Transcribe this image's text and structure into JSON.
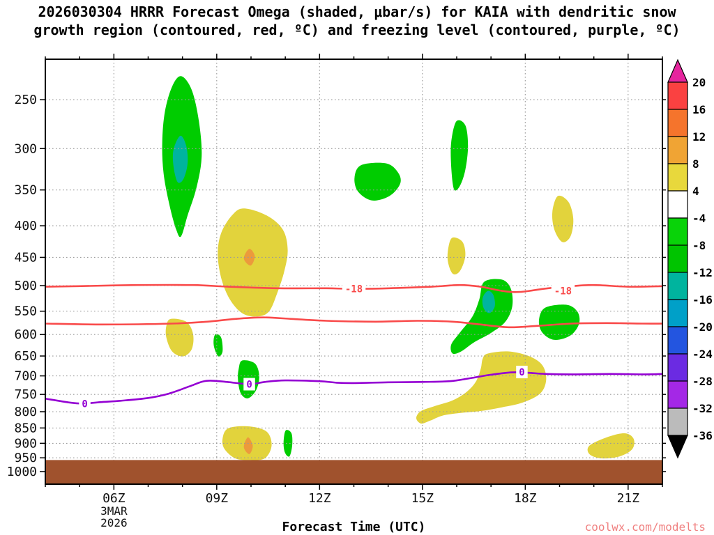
{
  "chart_data": {
    "type": "heatmap",
    "subtype": "pressure-time forecast cross-section (filled contours)",
    "title_line1": "2026030304 HRRR Forecast Omega (shaded, μbar/s) for KAIA with dendritic snow",
    "title_line2": "growth region (contoured, red, ºC) and freezing level (contoured, purple, ºC)",
    "watermark": "coolwx.com/modelts",
    "x_axis": {
      "label": "Forecast Time (UTC)",
      "range_hours": [
        4,
        22
      ],
      "major_ticks": [
        {
          "hour": 6,
          "label": "06Z"
        },
        {
          "hour": 9,
          "label": "09Z"
        },
        {
          "hour": 12,
          "label": "12Z"
        },
        {
          "hour": 15,
          "label": "15Z"
        },
        {
          "hour": 18,
          "label": "18Z"
        },
        {
          "hour": 21,
          "label": "21Z"
        }
      ],
      "minor_tick_every_hours": 1,
      "date_lines": [
        "3MAR",
        "2026"
      ],
      "date_tick_hour": 6
    },
    "y_axis": {
      "scale": "log",
      "range_hpa": [
        215,
        1048
      ],
      "ticks": [
        250,
        300,
        350,
        400,
        450,
        500,
        550,
        600,
        650,
        700,
        750,
        800,
        850,
        900,
        950,
        1000
      ]
    },
    "grid": {
      "color": "#999999",
      "style": "dotted"
    },
    "colorbar": {
      "labels": [
        20,
        16,
        12,
        8,
        4,
        -4,
        -8,
        -12,
        -16,
        -20,
        -24,
        -28,
        -32,
        -36
      ],
      "band_colors": [
        "#FA4141",
        "#F5742C",
        "#F0A434",
        "#E8D83C",
        "#FFFFFF",
        "#09D309",
        "#00C400",
        "#00B49E",
        "#00A0C8",
        "#2355E0",
        "#6B2BE2",
        "#A428E6",
        "#BBBBBB"
      ],
      "above_color": "#E6259E",
      "below_color": "#000000"
    },
    "terrain": {
      "color": "#A0522D",
      "top_pressure_hpa": 958
    },
    "shaded_regions": [
      {
        "name": "green-upper-08Z",
        "omega_band": "-8 to -4",
        "color": "#00CC00",
        "points": [
          [
            7.96,
            229
          ],
          [
            8.27,
            241
          ],
          [
            8.48,
            271
          ],
          [
            8.56,
            309
          ],
          [
            8.41,
            347
          ],
          [
            8.15,
            385
          ],
          [
            7.96,
            416
          ],
          [
            7.82,
            406
          ],
          [
            7.62,
            370
          ],
          [
            7.45,
            329
          ],
          [
            7.41,
            293
          ],
          [
            7.49,
            261
          ],
          [
            7.7,
            238
          ]
        ]
      },
      {
        "name": "teal-core-08Z",
        "omega_band": "-16 to -12",
        "color": "#00B49E",
        "points": [
          [
            7.94,
            286
          ],
          [
            8.11,
            297
          ],
          [
            8.15,
            317
          ],
          [
            8.03,
            336
          ],
          [
            7.86,
            340
          ],
          [
            7.74,
            321
          ],
          [
            7.74,
            301
          ]
        ]
      },
      {
        "name": "yellow-mid-10Z",
        "omega_band": "4 to 8",
        "color": "#E2D33C",
        "points": [
          [
            9.79,
            375
          ],
          [
            10.46,
            385
          ],
          [
            10.93,
            406
          ],
          [
            11.07,
            438
          ],
          [
            10.97,
            474
          ],
          [
            10.77,
            513
          ],
          [
            10.52,
            551
          ],
          [
            10.15,
            561
          ],
          [
            9.74,
            554
          ],
          [
            9.38,
            526
          ],
          [
            9.13,
            486
          ],
          [
            9.03,
            444
          ],
          [
            9.13,
            411
          ],
          [
            9.44,
            385
          ]
        ]
      },
      {
        "name": "orange-core-10Z",
        "omega_band": "8 to 12",
        "color": "#EC9A3C",
        "points": [
          [
            9.95,
            436
          ],
          [
            10.11,
            448
          ],
          [
            9.99,
            464
          ],
          [
            9.79,
            452
          ]
        ]
      },
      {
        "name": "green-upper-13Z",
        "omega_band": "-8 to -4",
        "color": "#00CC00",
        "points": [
          [
            13.22,
            319
          ],
          [
            13.94,
            317
          ],
          [
            14.29,
            328
          ],
          [
            14.35,
            342
          ],
          [
            14.04,
            358
          ],
          [
            13.53,
            364
          ],
          [
            13.12,
            352
          ],
          [
            13.02,
            334
          ]
        ]
      },
      {
        "name": "green-upper-16Z",
        "omega_band": "-8 to -4",
        "color": "#00CC00",
        "points": [
          [
            15.99,
            271
          ],
          [
            16.25,
            275
          ],
          [
            16.33,
            297
          ],
          [
            16.25,
            325
          ],
          [
            16.09,
            345
          ],
          [
            15.92,
            349
          ],
          [
            15.84,
            321
          ],
          [
            15.84,
            293
          ]
        ]
      },
      {
        "name": "yellow-mid-16Z",
        "omega_band": "4 to 8",
        "color": "#E2D33C",
        "points": [
          [
            15.88,
            418
          ],
          [
            16.17,
            425
          ],
          [
            16.25,
            448
          ],
          [
            16.09,
            474
          ],
          [
            15.88,
            478
          ],
          [
            15.74,
            456
          ],
          [
            15.76,
            433
          ]
        ]
      },
      {
        "name": "green-mid-17Z",
        "omega_band": "-8 to -4",
        "color": "#00CC00",
        "points": [
          [
            16.8,
            493
          ],
          [
            17.32,
            489
          ],
          [
            17.58,
            506
          ],
          [
            17.62,
            540
          ],
          [
            17.42,
            572
          ],
          [
            17.01,
            596
          ],
          [
            16.5,
            618
          ],
          [
            16.13,
            639
          ],
          [
            15.88,
            644
          ],
          [
            15.84,
            623
          ],
          [
            16.09,
            596
          ],
          [
            16.46,
            561
          ],
          [
            16.66,
            526
          ]
        ]
      },
      {
        "name": "teal-core-17Z",
        "omega_band": "-16 to -12",
        "color": "#00B49E",
        "points": [
          [
            16.91,
            510
          ],
          [
            17.07,
            518
          ],
          [
            17.11,
            540
          ],
          [
            16.95,
            554
          ],
          [
            16.78,
            543
          ],
          [
            16.76,
            523
          ]
        ]
      },
      {
        "name": "yellow-upper-19Z",
        "omega_band": "4 to 8",
        "color": "#E2D33C",
        "points": [
          [
            18.95,
            358
          ],
          [
            19.26,
            366
          ],
          [
            19.4,
            390
          ],
          [
            19.32,
            416
          ],
          [
            19.08,
            425
          ],
          [
            18.85,
            406
          ],
          [
            18.79,
            380
          ]
        ]
      },
      {
        "name": "green-mid-19Z",
        "omega_band": "-8 to -4",
        "color": "#00CC00",
        "points": [
          [
            18.58,
            543
          ],
          [
            19.2,
            537
          ],
          [
            19.52,
            551
          ],
          [
            19.57,
            576
          ],
          [
            19.32,
            602
          ],
          [
            18.85,
            612
          ],
          [
            18.5,
            596
          ],
          [
            18.4,
            569
          ]
        ]
      },
      {
        "name": "yellow-mid-08Z",
        "omega_band": "4 to 8",
        "color": "#E2D33C",
        "points": [
          [
            7.66,
            566
          ],
          [
            8.11,
            572
          ],
          [
            8.31,
            599
          ],
          [
            8.27,
            634
          ],
          [
            8.01,
            651
          ],
          [
            7.7,
            639
          ],
          [
            7.53,
            607
          ],
          [
            7.53,
            581
          ]
        ]
      },
      {
        "name": "green-small-09Z",
        "omega_band": "-8 to -4",
        "color": "#00CC00",
        "points": [
          [
            8.97,
            599
          ],
          [
            9.13,
            607
          ],
          [
            9.17,
            639
          ],
          [
            9.05,
            651
          ],
          [
            8.93,
            631
          ],
          [
            8.91,
            612
          ]
        ]
      },
      {
        "name": "green-low-10Z",
        "omega_band": "-8 to -4",
        "color": "#00CC00",
        "points": [
          [
            9.74,
            661
          ],
          [
            10.11,
            668
          ],
          [
            10.24,
            700
          ],
          [
            10.15,
            738
          ],
          [
            9.91,
            761
          ],
          [
            9.7,
            747
          ],
          [
            9.62,
            710
          ],
          [
            9.64,
            682
          ]
        ]
      },
      {
        "name": "yellow-low-15-18Z",
        "omega_band": "4 to 8",
        "color": "#E2D33C",
        "points": [
          [
            16.91,
            644
          ],
          [
            17.52,
            639
          ],
          [
            18.13,
            651
          ],
          [
            18.5,
            673
          ],
          [
            18.61,
            710
          ],
          [
            18.44,
            747
          ],
          [
            17.93,
            773
          ],
          [
            17.32,
            787
          ],
          [
            16.7,
            798
          ],
          [
            16.09,
            804
          ],
          [
            15.58,
            812
          ],
          [
            15.23,
            827
          ],
          [
            14.96,
            836
          ],
          [
            14.82,
            819
          ],
          [
            14.96,
            798
          ],
          [
            15.37,
            783
          ],
          [
            15.88,
            767
          ],
          [
            16.29,
            743
          ],
          [
            16.56,
            715
          ],
          [
            16.7,
            682
          ],
          [
            16.76,
            656
          ]
        ]
      },
      {
        "name": "yellow-low-10Z",
        "omega_band": "4 to 8",
        "color": "#E2D33C",
        "points": [
          [
            9.34,
            851
          ],
          [
            9.95,
            845
          ],
          [
            10.46,
            862
          ],
          [
            10.6,
            908
          ],
          [
            10.4,
            952
          ],
          [
            9.95,
            958
          ],
          [
            9.54,
            952
          ],
          [
            9.23,
            920
          ],
          [
            9.17,
            885
          ]
        ]
      },
      {
        "name": "orange-core-low-10Z",
        "omega_band": "8 to 12",
        "color": "#EC9A3C",
        "points": [
          [
            9.91,
            880
          ],
          [
            10.05,
            908
          ],
          [
            9.95,
            937
          ],
          [
            9.79,
            913
          ]
        ]
      },
      {
        "name": "green-low-11Z",
        "omega_band": "-8 to -4",
        "color": "#00CC00",
        "points": [
          [
            11.01,
            858
          ],
          [
            11.18,
            867
          ],
          [
            11.2,
            908
          ],
          [
            11.12,
            945
          ],
          [
            10.99,
            932
          ],
          [
            10.95,
            897
          ]
        ]
      },
      {
        "name": "yellow-low-20Z",
        "omega_band": "4 to 8",
        "color": "#E2D33C",
        "points": [
          [
            19.87,
            908
          ],
          [
            20.38,
            880
          ],
          [
            20.9,
            867
          ],
          [
            21.16,
            885
          ],
          [
            21.12,
            920
          ],
          [
            20.75,
            945
          ],
          [
            20.22,
            952
          ],
          [
            19.87,
            937
          ]
        ]
      }
    ],
    "contours": [
      {
        "name": "dendritic-growth-upper",
        "color": "#F94A4A",
        "label_text": "-18",
        "labels": [
          {
            "t": 13.0,
            "p": 506
          },
          {
            "t": 19.1,
            "p": 510
          }
        ],
        "points": [
          [
            4,
            502
          ],
          [
            4.96,
            501
          ],
          [
            6.68,
            499
          ],
          [
            8.31,
            499
          ],
          [
            9.34,
            502
          ],
          [
            10.77,
            505
          ],
          [
            12.2,
            505
          ],
          [
            12.92,
            506
          ],
          [
            14.04,
            505
          ],
          [
            15.27,
            502
          ],
          [
            16.09,
            499
          ],
          [
            16.7,
            502
          ],
          [
            17.32,
            510
          ],
          [
            17.83,
            512
          ],
          [
            18.54,
            506
          ],
          [
            19.16,
            502
          ],
          [
            19.97,
            499
          ],
          [
            21.0,
            502
          ],
          [
            22,
            501
          ]
        ]
      },
      {
        "name": "dendritic-growth-lower",
        "color": "#F94A4A",
        "label_text": "",
        "labels": [],
        "points": [
          [
            4,
            576
          ],
          [
            5.65,
            578
          ],
          [
            7.7,
            576
          ],
          [
            8.72,
            572
          ],
          [
            9.54,
            566
          ],
          [
            10.36,
            563
          ],
          [
            11.18,
            566
          ],
          [
            12.2,
            570
          ],
          [
            13.63,
            572
          ],
          [
            14.86,
            570
          ],
          [
            15.88,
            572
          ],
          [
            16.7,
            578
          ],
          [
            17.52,
            584
          ],
          [
            18.34,
            581
          ],
          [
            19.36,
            576
          ],
          [
            20.38,
            575
          ],
          [
            21.41,
            576
          ],
          [
            22,
            576
          ]
        ]
      },
      {
        "name": "freezing-level",
        "color": "#9400D3",
        "label_text": "0",
        "labels": [
          {
            "t": 5.15,
            "p": 776
          },
          {
            "t": 9.95,
            "p": 722
          },
          {
            "t": 17.9,
            "p": 690
          }
        ],
        "points": [
          [
            4,
            762
          ],
          [
            4.7,
            773
          ],
          [
            5.1,
            776
          ],
          [
            5.6,
            772
          ],
          [
            6.2,
            768
          ],
          [
            7,
            760
          ],
          [
            7.6,
            748
          ],
          [
            8.2,
            728
          ],
          [
            8.7,
            713
          ],
          [
            9.3,
            716
          ],
          [
            9.95,
            722
          ],
          [
            10.4,
            716
          ],
          [
            11,
            712
          ],
          [
            12,
            714
          ],
          [
            12.5,
            718
          ],
          [
            13,
            719
          ],
          [
            14,
            717
          ],
          [
            15,
            716
          ],
          [
            15.8,
            714
          ],
          [
            16.4,
            706
          ],
          [
            17,
            697
          ],
          [
            17.6,
            691
          ],
          [
            18.1,
            692
          ],
          [
            18.6,
            695
          ],
          [
            19.5,
            696
          ],
          [
            20.5,
            695
          ],
          [
            21.5,
            696
          ],
          [
            22,
            695
          ]
        ]
      }
    ]
  }
}
